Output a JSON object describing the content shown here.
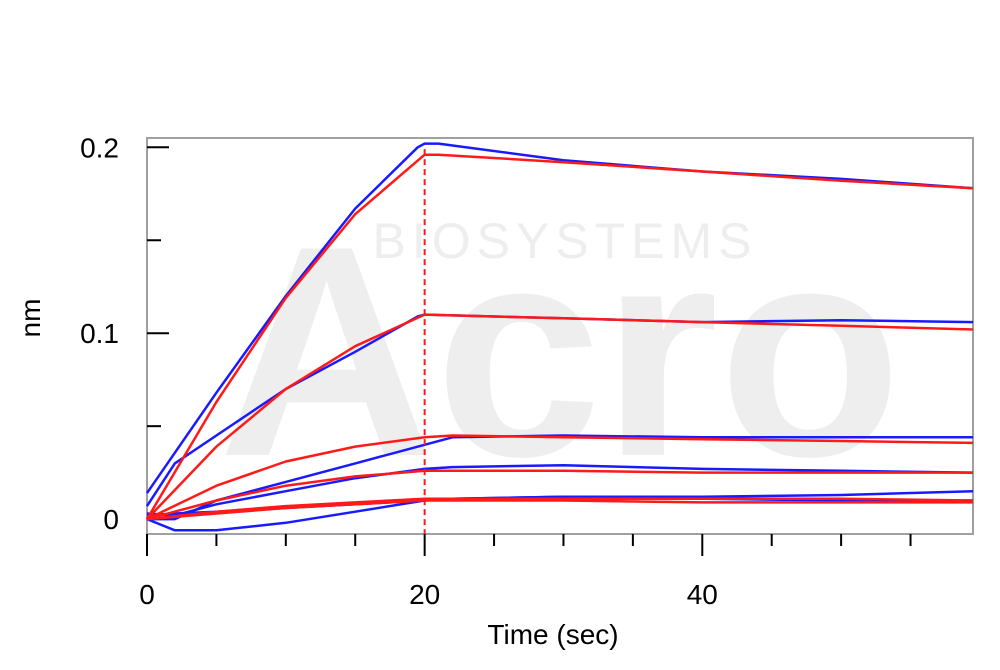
{
  "chart_data": {
    "type": "line",
    "title": "",
    "xlabel": "Time (sec)",
    "ylabel": "nm",
    "xlim": [
      0,
      59.5
    ],
    "ylim": [
      -0.008,
      0.205
    ],
    "x_ticks": [
      0,
      20,
      40
    ],
    "x_tick_labels": [
      "0",
      "20",
      "40"
    ],
    "x_minor_step": 5,
    "y_ticks": [
      0,
      0.1,
      0.2
    ],
    "y_tick_labels": [
      "0",
      "0.1",
      "0.2"
    ],
    "y_minor_ticks": [
      0.05,
      0.15
    ],
    "grid": false,
    "legend": "none",
    "association_end_time": 20,
    "watermark": {
      "logo_text": "Acro",
      "sub_text": "BIOSYSTEMS"
    },
    "colors": {
      "measured": "#1a1aff",
      "fit": "#ff1a1a",
      "marker_line": "#ff1a1a",
      "frame": "#a0a0a0"
    },
    "series": [
      {
        "kind": "measured",
        "x": [
          0,
          5,
          10,
          15,
          19.5,
          20,
          21,
          30,
          40,
          50,
          59.5
        ],
        "y": [
          0.014,
          0.068,
          0.12,
          0.167,
          0.2,
          0.202,
          0.202,
          0.193,
          0.187,
          0.183,
          0.178
        ]
      },
      {
        "kind": "fit",
        "x": [
          0,
          5,
          10,
          15,
          20,
          21,
          30,
          40,
          50,
          59.5
        ],
        "y": [
          0.0,
          0.063,
          0.119,
          0.164,
          0.196,
          0.196,
          0.192,
          0.187,
          0.182,
          0.178
        ]
      },
      {
        "kind": "measured",
        "x": [
          0,
          2,
          5,
          10,
          15,
          19.5,
          20,
          30,
          40,
          50,
          59.5
        ],
        "y": [
          0.007,
          0.03,
          0.045,
          0.07,
          0.09,
          0.109,
          0.11,
          0.108,
          0.106,
          0.107,
          0.106
        ]
      },
      {
        "kind": "fit",
        "x": [
          0,
          5,
          10,
          15,
          20,
          30,
          40,
          50,
          59.5
        ],
        "y": [
          0.0,
          0.039,
          0.07,
          0.093,
          0.11,
          0.108,
          0.106,
          0.104,
          0.102
        ]
      },
      {
        "kind": "measured",
        "x": [
          0,
          2,
          5,
          10,
          15,
          20,
          22,
          30,
          40,
          50,
          59.5
        ],
        "y": [
          0.0,
          0.0,
          0.01,
          0.02,
          0.03,
          0.04,
          0.044,
          0.045,
          0.044,
          0.044,
          0.044
        ]
      },
      {
        "kind": "fit",
        "x": [
          0,
          5,
          10,
          15,
          20,
          22,
          30,
          40,
          50,
          59.5
        ],
        "y": [
          0.0,
          0.018,
          0.031,
          0.039,
          0.044,
          0.045,
          0.044,
          0.043,
          0.042,
          0.041
        ]
      },
      {
        "kind": "measured",
        "x": [
          0,
          2,
          5,
          10,
          15,
          20,
          22,
          30,
          40,
          50,
          59.5
        ],
        "y": [
          0.003,
          0.002,
          0.008,
          0.015,
          0.022,
          0.027,
          0.028,
          0.029,
          0.027,
          0.026,
          0.025
        ]
      },
      {
        "kind": "fit",
        "x": [
          0,
          5,
          10,
          15,
          20,
          30,
          40,
          50,
          59.5
        ],
        "y": [
          0.0,
          0.01,
          0.018,
          0.023,
          0.026,
          0.026,
          0.025,
          0.025,
          0.025
        ]
      },
      {
        "kind": "measured",
        "x": [
          0,
          2,
          5,
          10,
          15,
          20,
          22,
          30,
          40,
          50,
          59.5
        ],
        "y": [
          0.0,
          -0.006,
          -0.006,
          -0.002,
          0.004,
          0.01,
          0.011,
          0.012,
          0.012,
          0.013,
          0.015
        ]
      },
      {
        "kind": "measured",
        "x": [
          0,
          2,
          5,
          10,
          15,
          20,
          22,
          30,
          40,
          50,
          59.5
        ],
        "y": [
          0.002,
          0.003,
          0.004,
          0.006,
          0.008,
          0.01,
          0.011,
          0.012,
          0.011,
          0.01,
          0.01
        ]
      },
      {
        "kind": "fit",
        "x": [
          0,
          5,
          10,
          15,
          20,
          30,
          40,
          50,
          59.5
        ],
        "y": [
          0.0,
          0.004,
          0.007,
          0.009,
          0.011,
          0.011,
          0.011,
          0.011,
          0.01
        ]
      },
      {
        "kind": "fit",
        "x": [
          0,
          5,
          10,
          15,
          20,
          30,
          40,
          50,
          59.5
        ],
        "y": [
          0.0,
          0.003,
          0.006,
          0.008,
          0.01,
          0.01,
          0.009,
          0.009,
          0.009
        ]
      }
    ]
  }
}
